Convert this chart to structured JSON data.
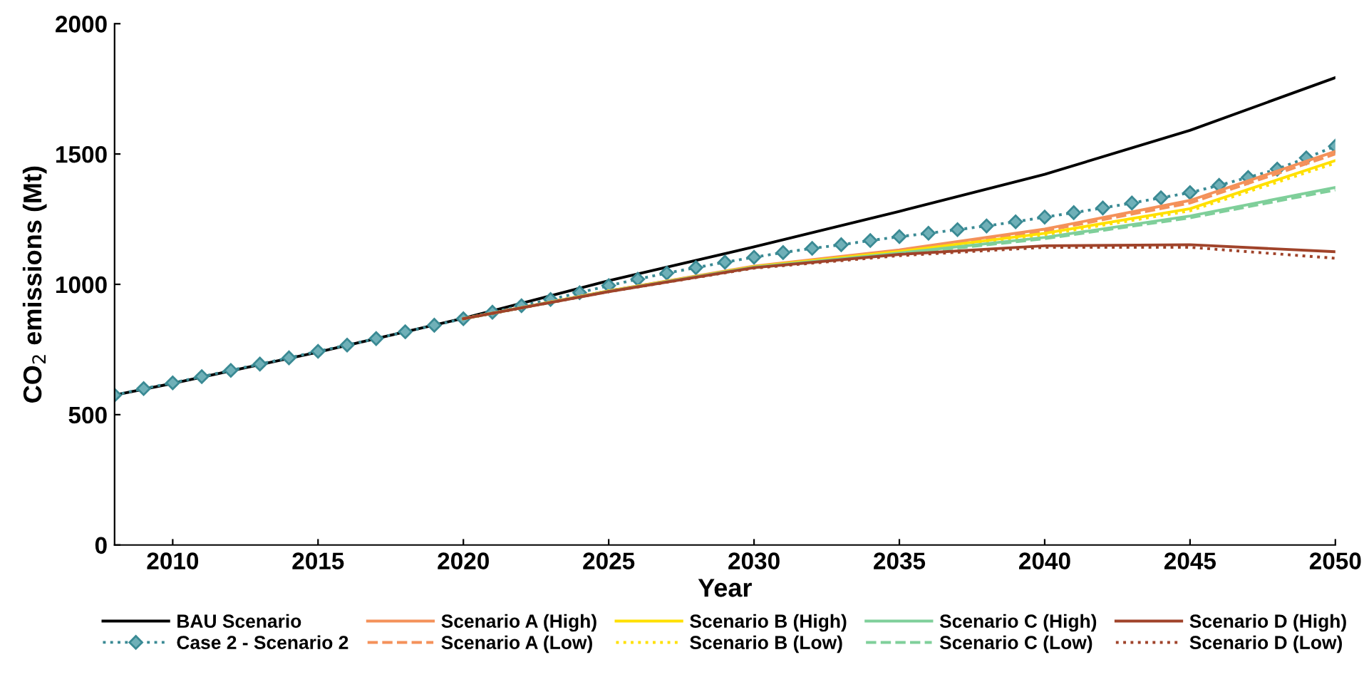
{
  "chart_data": {
    "type": "line",
    "xlabel": "Year",
    "ylabel": "CO$_{2}$ emissions (Mt)",
    "xlim": [
      2008,
      2050
    ],
    "xticks": [
      2010,
      2015,
      2020,
      2025,
      2030,
      2035,
      2040,
      2045,
      2050
    ],
    "ylim": [
      0,
      2000
    ],
    "yticks": [
      0,
      500,
      1000,
      1500,
      2000
    ],
    "grid": false,
    "legend": "bottom",
    "series": [
      {
        "name": "BAU Scenario",
        "color": "#000000",
        "line_style": "solid",
        "marker": "none",
        "x": [
          2008,
          2010,
          2015,
          2020,
          2025,
          2030,
          2035,
          2040,
          2045,
          2050
        ],
        "values": [
          575,
          620,
          740,
          870,
          1014,
          1144,
          1280,
          1422,
          1591,
          1793
        ]
      },
      {
        "name": "Case 2 - Scenario 2",
        "color": "#3a8a94",
        "line_style": "dotted",
        "marker": "diamond",
        "x": [
          2008,
          2009,
          2010,
          2011,
          2012,
          2013,
          2014,
          2015,
          2016,
          2017,
          2018,
          2019,
          2020,
          2021,
          2022,
          2023,
          2024,
          2025,
          2026,
          2027,
          2028,
          2029,
          2030,
          2031,
          2032,
          2033,
          2034,
          2035,
          2036,
          2037,
          2038,
          2039,
          2040,
          2041,
          2042,
          2043,
          2044,
          2045,
          2046,
          2047,
          2048,
          2049,
          2050
        ],
        "values": [
          575,
          600,
          622,
          646,
          670,
          694,
          718,
          743,
          767,
          792,
          818,
          843,
          868,
          893,
          918,
          942,
          968,
          995,
          1020,
          1043,
          1064,
          1085,
          1104,
          1122,
          1138,
          1152,
          1168,
          1183,
          1196,
          1210,
          1224,
          1240,
          1258,
          1275,
          1293,
          1312,
          1332,
          1352,
          1380,
          1410,
          1442,
          1485,
          1530
        ]
      },
      {
        "name": "Scenario A (High)",
        "color": "#f4915a",
        "line_style": "solid",
        "marker": "none",
        "x": [
          2020,
          2025,
          2030,
          2035,
          2040,
          2045,
          2050
        ],
        "values": [
          868,
          975,
          1070,
          1132,
          1212,
          1322,
          1510
        ]
      },
      {
        "name": "Scenario A (Low)",
        "color": "#f4915a",
        "line_style": "dashed",
        "marker": "none",
        "x": [
          2020,
          2025,
          2030,
          2035,
          2040,
          2045,
          2050
        ],
        "values": [
          868,
          975,
          1068,
          1128,
          1205,
          1312,
          1500
        ]
      },
      {
        "name": "Scenario B (High)",
        "color": "#ffe000",
        "line_style": "solid",
        "marker": "none",
        "x": [
          2020,
          2025,
          2030,
          2035,
          2040,
          2045,
          2050
        ],
        "values": [
          868,
          974,
          1068,
          1126,
          1196,
          1290,
          1475
        ]
      },
      {
        "name": "Scenario B (Low)",
        "color": "#ffe000",
        "line_style": "dotted",
        "marker": "none",
        "x": [
          2020,
          2025,
          2030,
          2035,
          2040,
          2045,
          2050
        ],
        "values": [
          868,
          974,
          1066,
          1122,
          1190,
          1282,
          1465
        ]
      },
      {
        "name": "Scenario C (High)",
        "color": "#7fcf9a",
        "line_style": "solid",
        "marker": "none",
        "x": [
          2020,
          2025,
          2030,
          2035,
          2040,
          2045,
          2050
        ],
        "values": [
          868,
          973,
          1066,
          1120,
          1180,
          1262,
          1372
        ]
      },
      {
        "name": "Scenario C (Low)",
        "color": "#7fcf9a",
        "line_style": "dashed",
        "marker": "none",
        "x": [
          2020,
          2025,
          2030,
          2035,
          2040,
          2045,
          2050
        ],
        "values": [
          868,
          973,
          1064,
          1116,
          1175,
          1255,
          1362
        ]
      },
      {
        "name": "Scenario D (High)",
        "color": "#a0432a",
        "line_style": "solid",
        "marker": "none",
        "x": [
          2020,
          2025,
          2030,
          2035,
          2040,
          2045,
          2050
        ],
        "values": [
          868,
          972,
          1064,
          1115,
          1148,
          1152,
          1125
        ]
      },
      {
        "name": "Scenario D (Low)",
        "color": "#a0432a",
        "line_style": "dotted",
        "marker": "none",
        "x": [
          2020,
          2025,
          2030,
          2035,
          2040,
          2045,
          2050
        ],
        "values": [
          868,
          972,
          1062,
          1110,
          1142,
          1142,
          1100
        ]
      }
    ]
  }
}
